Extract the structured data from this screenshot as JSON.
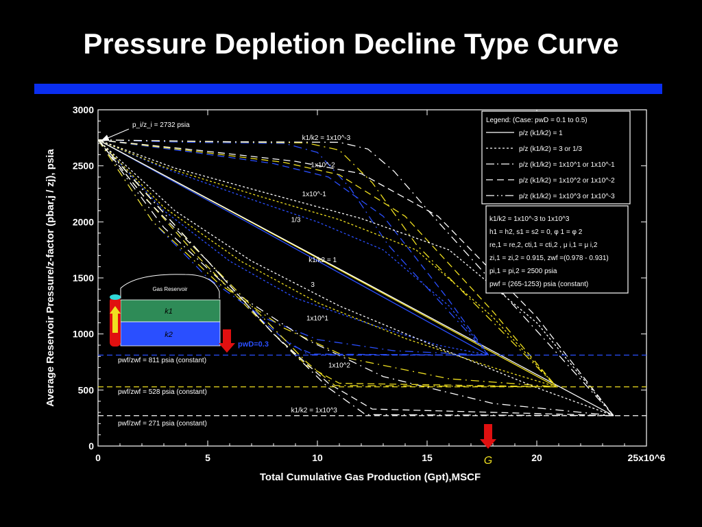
{
  "slide": {
    "title": "Pressure Depletion Decline Type Curve",
    "accent_color": "#0a2ef0"
  },
  "chart_data": {
    "type": "line",
    "title": "Pressure Depletion Decline Type Curve",
    "xlabel": "Total Cumulative Gas Production (Gpt),MSCF",
    "ylabel": "Average Reservoir Pressure/z-factor (pbar,j / zj), psia",
    "xlim": [
      0,
      25000000
    ],
    "ylim": [
      0,
      3000
    ],
    "x_ticks": [
      "0",
      "5",
      "10",
      "15",
      "20",
      "25x10^6"
    ],
    "x_tick_values": [
      0,
      5000000,
      10000000,
      15000000,
      20000000,
      25000000
    ],
    "y_ticks": [
      "0",
      "500",
      "1000",
      "1500",
      "2000",
      "2500",
      "3000"
    ],
    "y_tick_values": [
      0,
      500,
      1000,
      1500,
      2000,
      2500,
      3000
    ],
    "initial_point_label": "p_i/z_i = 2732 psia",
    "initial_pz": 2732,
    "pwf_lines": [
      {
        "label": "pwf/zwf = 811 psia (constant)",
        "value": 811,
        "color": "#2a4fff"
      },
      {
        "label": "pwf/zwf = 528 psia (constant)",
        "value": 528,
        "color": "#f0e020"
      },
      {
        "label": "pwf/zwf = 271 psia (constant)",
        "value": 271,
        "color": "#ffffff"
      }
    ],
    "G_label": "G",
    "G_value": 17800000,
    "pwD_label": "pwD=0.3",
    "series": [
      {
        "name": "k1/k2 = 1 (pwD 0.3)",
        "color": "#2a4fff",
        "dash": "solid",
        "x": [
          0,
          17800000
        ],
        "y": [
          2732,
          811
        ]
      },
      {
        "name": "k1/k2 = 1 (pwD 0.2)",
        "color": "#f0e020",
        "dash": "solid",
        "x": [
          0,
          20900000
        ],
        "y": [
          2732,
          528
        ]
      },
      {
        "name": "k1/k2 = 1 (pwD 0.1)",
        "color": "#ffffff",
        "dash": "solid",
        "x": [
          0,
          23500000
        ],
        "y": [
          2732,
          271
        ]
      },
      {
        "name": "k1/k2 = 1x10^-3 (pwD 0.3)",
        "color": "#2a4fff",
        "dash": "12,6,2,6",
        "x": [
          0,
          4000000,
          8500000,
          10000000,
          11500000,
          13200000,
          17800000
        ],
        "y": [
          2732,
          2710,
          2700,
          2620,
          2300,
          1800,
          811
        ]
      },
      {
        "name": "k1/k2 = 1x10^-3 (pwD 0.2)",
        "color": "#f0e020",
        "dash": "12,6,2,6",
        "x": [
          0,
          5000000,
          9500000,
          11000000,
          12500000,
          14500000,
          20900000
        ],
        "y": [
          2732,
          2715,
          2705,
          2640,
          2350,
          1800,
          528
        ]
      },
      {
        "name": "k1/k2 = 1x10^-3 (pwD 0.1)",
        "color": "#ffffff",
        "dash": "12,6,2,6",
        "x": [
          0,
          6000000,
          11000000,
          12300000,
          13500000,
          15500000,
          23500000
        ],
        "y": [
          2732,
          2715,
          2710,
          2650,
          2450,
          2000,
          271
        ]
      },
      {
        "name": "k1/k2 = 1x10^-2 (pwD 0.3)",
        "color": "#2a4fff",
        "dash": "10,6",
        "x": [
          0,
          4000000,
          8000000,
          10500000,
          13000000,
          16000000,
          17800000
        ],
        "y": [
          2732,
          2630,
          2520,
          2400,
          2050,
          1300,
          811
        ]
      },
      {
        "name": "k1/k2 = 1x10^-2 (pwD 0.2)",
        "color": "#f0e020",
        "dash": "10,6",
        "x": [
          0,
          4000000,
          8500000,
          11000000,
          14000000,
          18000000,
          20900000
        ],
        "y": [
          2732,
          2640,
          2530,
          2420,
          2050,
          1200,
          528
        ]
      },
      {
        "name": "k1/k2 = 1x10^-2 (pwD 0.1)",
        "color": "#ffffff",
        "dash": "10,6",
        "x": [
          0,
          4500000,
          9000000,
          12000000,
          15500000,
          20000000,
          23500000
        ],
        "y": [
          2732,
          2640,
          2540,
          2430,
          2050,
          1150,
          271
        ]
      },
      {
        "name": "k1/k2 = 1x10^-1 (pwD 0.3)",
        "color": "#2a4fff",
        "dash": "3,3",
        "x": [
          0,
          3000000,
          7000000,
          10000000,
          13000000,
          16000000,
          17800000
        ],
        "y": [
          2732,
          2480,
          2200,
          2000,
          1750,
          1250,
          811
        ]
      },
      {
        "name": "k1/k2 = 1x10^-1 (pwD 0.2)",
        "color": "#f0e020",
        "dash": "3,3",
        "x": [
          0,
          3000000,
          7500000,
          11000000,
          14500000,
          18000000,
          20900000
        ],
        "y": [
          2732,
          2490,
          2220,
          2020,
          1750,
          1150,
          528
        ]
      },
      {
        "name": "k1/k2 = 1x10^-1 (pwD 0.1)",
        "color": "#ffffff",
        "dash": "3,3",
        "x": [
          0,
          3500000,
          8000000,
          12000000,
          16000000,
          20000000,
          23500000
        ],
        "y": [
          2732,
          2480,
          2240,
          2030,
          1750,
          1100,
          271
        ]
      },
      {
        "name": "k1/k2 = 3 (pwD 0.3)",
        "color": "#2a4fff",
        "dash": "3,3",
        "x": [
          0,
          3000000,
          6000000,
          9000000,
          12500000,
          15500000,
          17800000
        ],
        "y": [
          2732,
          2100,
          1650,
          1320,
          1080,
          900,
          811
        ]
      },
      {
        "name": "k1/k2 = 3 (pwD 0.2)",
        "color": "#f0e020",
        "dash": "3,3",
        "x": [
          0,
          3000000,
          6500000,
          10000000,
          14000000,
          18000000,
          20900000
        ],
        "y": [
          2732,
          2130,
          1650,
          1280,
          960,
          700,
          528
        ]
      },
      {
        "name": "k1/k2 = 3 (pwD 0.1)",
        "color": "#ffffff",
        "dash": "3,3",
        "x": [
          0,
          3500000,
          7000000,
          11000000,
          15500000,
          20000000,
          23500000
        ],
        "y": [
          2732,
          2100,
          1650,
          1250,
          880,
          520,
          271
        ]
      },
      {
        "name": "k1/k2 = 1x10^1 (pwD 0.3)",
        "color": "#2a4fff",
        "dash": "12,6,2,6",
        "x": [
          0,
          2500000,
          5000000,
          7500000,
          10000000,
          13500000,
          17800000
        ],
        "y": [
          2732,
          2000,
          1500,
          1150,
          950,
          850,
          811
        ]
      },
      {
        "name": "k1/k2 = 1x10^1 (pwD 0.2)",
        "color": "#f0e020",
        "dash": "12,6,2,6",
        "x": [
          0,
          2500000,
          5500000,
          8500000,
          11500000,
          16000000,
          20900000
        ],
        "y": [
          2732,
          2000,
          1450,
          1050,
          780,
          600,
          528
        ]
      },
      {
        "name": "k1/k2 = 1x10^1 (pwD 0.1)",
        "color": "#ffffff",
        "dash": "12,6,2,6",
        "x": [
          0,
          3000000,
          6000000,
          9500000,
          13000000,
          18000000,
          23500000
        ],
        "y": [
          2732,
          1950,
          1400,
          950,
          620,
          380,
          271
        ]
      },
      {
        "name": "k1/k2 = 1x10^2 (pwD 0.3)",
        "color": "#2a4fff",
        "dash": "10,6",
        "x": [
          0,
          2000000,
          4500000,
          7000000,
          8800000,
          9800000,
          17800000
        ],
        "y": [
          2732,
          2250,
          1700,
          1200,
          900,
          820,
          811
        ]
      },
      {
        "name": "k1/k2 = 1x10^2 (pwD 0.2)",
        "color": "#f0e020",
        "dash": "10,6",
        "x": [
          0,
          2000000,
          4500000,
          7500000,
          9500000,
          11000000,
          20900000
        ],
        "y": [
          2732,
          2250,
          1700,
          1100,
          720,
          560,
          528
        ]
      },
      {
        "name": "k1/k2 = 1x10^2 (pwD 0.1)",
        "color": "#ffffff",
        "dash": "10,6",
        "x": [
          0,
          2200000,
          5000000,
          8000000,
          10500000,
          12500000,
          23500000
        ],
        "y": [
          2732,
          2200,
          1650,
          1000,
          560,
          330,
          271
        ]
      },
      {
        "name": "k1/k2 = 1x10^3 (pwD 0.3)",
        "color": "#2a4fff",
        "dash": "12,6,2,6",
        "x": [
          0,
          2000000,
          4500000,
          7000000,
          8500000,
          9600000,
          17800000
        ],
        "y": [
          2732,
          2300,
          1750,
          1250,
          950,
          815,
          811
        ]
      },
      {
        "name": "k1/k2 = 1x10^3 (pwD 0.2)",
        "color": "#f0e020",
        "dash": "12,6,2,6",
        "x": [
          0,
          2000000,
          4500000,
          7500000,
          9500000,
          10800000,
          20900000
        ],
        "y": [
          2732,
          2300,
          1750,
          1150,
          750,
          540,
          528
        ]
      },
      {
        "name": "k1/k2 = 1x10^3 (pwD 0.1)",
        "color": "#ffffff",
        "dash": "12,6,2,6",
        "x": [
          0,
          2200000,
          5000000,
          8000000,
          10500000,
          12200000,
          23500000
        ],
        "y": [
          2732,
          2250,
          1650,
          1000,
          520,
          280,
          271
        ]
      }
    ],
    "curve_labels": [
      {
        "text": "k1/k2 = 1x10^-3",
        "x": 9300000,
        "y": 2730
      },
      {
        "text": "1x10^-2",
        "x": 9700000,
        "y": 2490
      },
      {
        "text": "1x10^-1",
        "x": 9300000,
        "y": 2230
      },
      {
        "text": "1/3",
        "x": 8800000,
        "y": 2000
      },
      {
        "text": "k1/k2 = 1",
        "x": 9600000,
        "y": 1640
      },
      {
        "text": "3",
        "x": 9700000,
        "y": 1420
      },
      {
        "text": "1x10^1",
        "x": 9500000,
        "y": 1120
      },
      {
        "text": "1x10^2",
        "x": 10500000,
        "y": 700
      },
      {
        "text": "k1/k2 = 1x10^3",
        "x": 8800000,
        "y": 300
      }
    ],
    "legend": {
      "title": "Legend:  (Case: pwD = 0.1 to 0.5)",
      "placement": "top-right",
      "entries": [
        {
          "label": "p/z (k1/k2) = 1",
          "dash": "solid"
        },
        {
          "label": "p/z (k1/k2) = 3 or 1/3",
          "dash": "3,3"
        },
        {
          "label": "p/z (k1/k2) = 1x10^1 or 1x10^-1",
          "dash": "12,4,2,4"
        },
        {
          "label": "p/z (k1/k2) = 1x10^2 or 1x10^-2",
          "dash": "10,6"
        },
        {
          "label": "p/z (k1/k2) = 1x10^3 or 1x10^-3",
          "dash": "12,4,2,4,2,4"
        }
      ]
    },
    "parameters_box": [
      "k1/k2 = 1x10^-3 to 1x10^3",
      "h1 = h2, s1 = s2 = 0, φ 1 = φ 2",
      "re,1 = re,2, cti,1 = cti,2 , μ i,1 = μ i,2",
      "zi,1 = zi,2 = 0.915, zwf =(0.978 - 0.931)",
      "pi,1 = pi,2 = 2500 psia",
      "pwf = (265-1253) psia (constant)"
    ],
    "inset": {
      "title": "Gas Reservoir",
      "layer1": "k1",
      "layer2": "k2"
    }
  }
}
